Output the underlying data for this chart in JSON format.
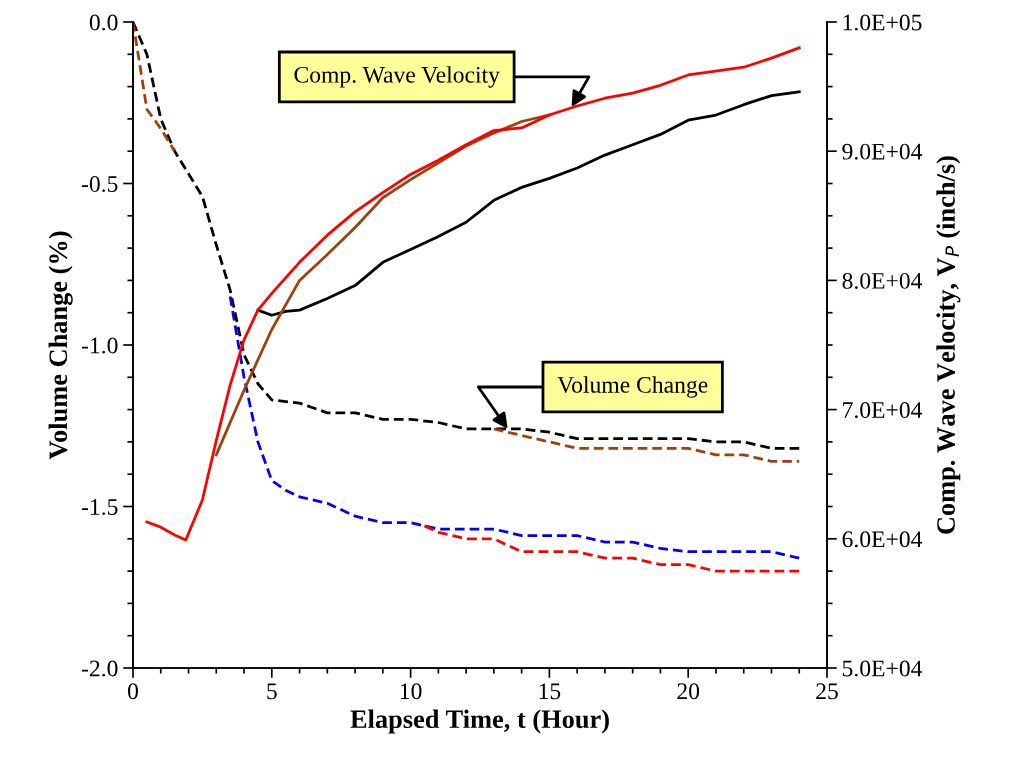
{
  "chart_data": {
    "type": "line",
    "xlabel": "Elapsed Time, t (Hour)",
    "ylabel": "Volume Change (%)",
    "y2label": "Comp. Wave Velocity, V$_{P}$ (inch/s)",
    "xlim": [
      0,
      25
    ],
    "xticks": [
      0,
      5,
      10,
      15,
      20,
      25
    ],
    "ylim": [
      -2.0,
      0.0
    ],
    "yticks": [
      {
        "value": -2.0,
        "label": "-2.0"
      },
      {
        "value": -1.5,
        "label": "-1.5"
      },
      {
        "value": -1.0,
        "label": "-1.0"
      },
      {
        "value": -0.5,
        "label": "-0.5"
      },
      {
        "value": 0.0,
        "label": "0.0"
      }
    ],
    "y2lim": [
      50000,
      100000
    ],
    "y2ticks": [
      {
        "value": 50000,
        "label": "5.0E+04"
      },
      {
        "value": 60000,
        "label": "6.0E+04"
      },
      {
        "value": 70000,
        "label": "7.0E+04"
      },
      {
        "value": 80000,
        "label": "8.0E+04"
      },
      {
        "value": 90000,
        "label": "9.0E+04"
      },
      {
        "value": 100000,
        "label": "1.0E+05"
      }
    ],
    "grid": false,
    "legend": false,
    "marker": "none",
    "series": [
      {
        "color": "#000000",
        "line_style": "dashed",
        "x": [
          0,
          0.5,
          1,
          1.5,
          2,
          2.5,
          3,
          3.5,
          4,
          4.5,
          5,
          6,
          7,
          8,
          9,
          10,
          11,
          12,
          13,
          14,
          15,
          16,
          17,
          18,
          19,
          20,
          21,
          22,
          23,
          24
        ],
        "values": [
          0,
          -0.1,
          -0.3,
          -0.4,
          -0.47,
          -0.54,
          -0.69,
          -0.83,
          -1.03,
          -1.12,
          -1.17,
          -1.18,
          -1.21,
          -1.21,
          -1.23,
          -1.23,
          -1.24,
          -1.26,
          -1.26,
          -1.26,
          -1.27,
          -1.29,
          -1.29,
          -1.29,
          -1.29,
          -1.29,
          -1.3,
          -1.3,
          -1.32,
          -1.32
        ]
      },
      {
        "color": "#a0400a",
        "line_style": "dashed",
        "x": [
          0,
          0.5,
          1,
          1.5,
          2,
          13,
          14,
          15,
          16,
          17,
          18,
          19,
          20,
          21,
          22,
          23,
          24
        ],
        "values": [
          0,
          -0.27,
          -0.33,
          -0.4,
          null,
          -1.26,
          -1.28,
          -1.3,
          -1.32,
          -1.32,
          -1.32,
          -1.32,
          -1.32,
          -1.34,
          -1.34,
          -1.36,
          -1.36
        ]
      },
      {
        "color": "#0000ff",
        "line_style": "dashed",
        "x": [
          3.5,
          4,
          4.5,
          5,
          5.5,
          6,
          7,
          8,
          9,
          10,
          11,
          12,
          13,
          14,
          15,
          16,
          17,
          18,
          19,
          20,
          21,
          22,
          23,
          24
        ],
        "values": [
          -0.85,
          -1.1,
          -1.3,
          -1.42,
          -1.45,
          -1.47,
          -1.49,
          -1.53,
          -1.55,
          -1.55,
          -1.57,
          -1.57,
          -1.57,
          -1.59,
          -1.59,
          -1.59,
          -1.61,
          -1.61,
          -1.63,
          -1.64,
          -1.64,
          -1.64,
          -1.64,
          -1.66
        ]
      },
      {
        "color": "#ff0000",
        "line_style": "dashed",
        "x": [
          10.5,
          11,
          12,
          13,
          14,
          15,
          16,
          17,
          18,
          19,
          20,
          21,
          22,
          23,
          24
        ],
        "values": [
          -1.56,
          -1.58,
          -1.6,
          -1.6,
          -1.64,
          -1.64,
          -1.64,
          -1.66,
          -1.66,
          -1.68,
          -1.68,
          -1.7,
          -1.7,
          -1.7,
          -1.7
        ]
      },
      {
        "color": "#000000",
        "line_style": "solid",
        "axis": "y2",
        "x": [
          4.5,
          5,
          5.5,
          6,
          7,
          8,
          9,
          10,
          11,
          12,
          13,
          14,
          15,
          16,
          17,
          18,
          19,
          20,
          21,
          22,
          23,
          24
        ],
        "values": [
          77700,
          77300,
          77600,
          77700,
          78600,
          79600,
          81400,
          82400,
          83400,
          84500,
          86200,
          87200,
          87900,
          88700,
          89700,
          90500,
          91300,
          92400,
          92800,
          93600,
          94300,
          94600
        ]
      },
      {
        "color": "#a0400a",
        "line_style": "solid",
        "axis": "y2",
        "x": [
          3,
          4,
          5,
          6,
          7,
          8,
          9,
          10,
          11,
          12,
          13,
          14,
          15
        ],
        "values": [
          66500,
          71500,
          76200,
          80000,
          82000,
          84100,
          86400,
          87800,
          89100,
          90400,
          91400,
          92300,
          92800
        ]
      },
      {
        "color": "#ff0000",
        "line_style": "solid",
        "axis": "y2",
        "x": [
          0.5,
          1,
          1.5,
          1.9,
          2.5,
          3,
          3.5,
          4,
          4.5,
          5,
          6,
          7,
          8,
          9,
          10,
          11,
          12,
          13,
          14,
          15,
          16,
          17,
          18,
          19,
          20,
          21,
          22,
          23,
          24
        ],
        "values": [
          61300,
          60900,
          60300,
          59900,
          63000,
          67600,
          71900,
          75400,
          77700,
          79000,
          81400,
          83500,
          85300,
          86800,
          88200,
          89300,
          90500,
          91600,
          91800,
          92800,
          93500,
          94100,
          94500,
          95100,
          95900,
          96200,
          96500,
          97200,
          98000
        ]
      }
    ],
    "annotations": [
      {
        "text": "Comp. Wave Velocity",
        "x": 15.8,
        "y": -0.263
      },
      {
        "text": "Volume Change",
        "x": 13.5,
        "y": -1.26
      }
    ]
  }
}
